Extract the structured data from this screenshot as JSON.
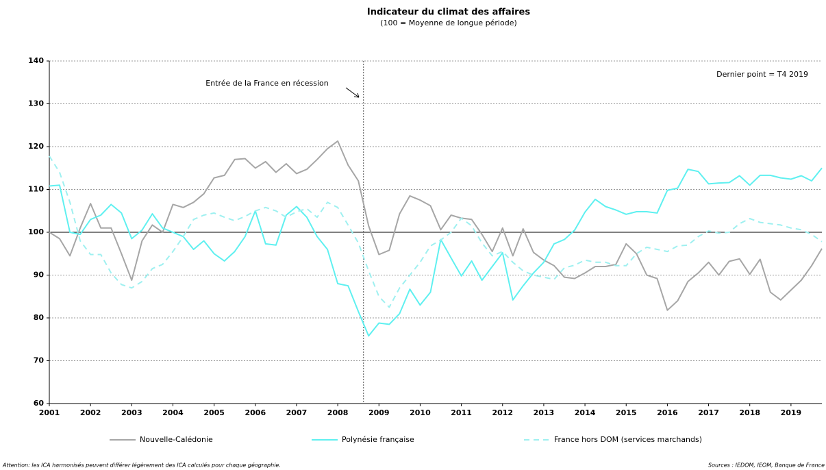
{
  "chart_data": {
    "type": "line",
    "title": "Indicateur du climat des affaires",
    "subtitle": "(100 = Moyenne de longue période)",
    "annotation": "Dernier point = T4 2019",
    "vline": {
      "x": 2008.625,
      "label": "Entrée de la France en récession"
    },
    "reference_line": 100,
    "footnote_left": "Attention: les ICA harmonisés peuvent différer légèrement des ICA calculés pour chaque géographie.",
    "footnote_right": "Sources : IEDOM, IEOM, Banque de France",
    "x": [
      2001,
      2001.25,
      2001.5,
      2001.75,
      2002,
      2002.25,
      2002.5,
      2002.75,
      2003,
      2003.25,
      2003.5,
      2003.75,
      2004,
      2004.25,
      2004.5,
      2004.75,
      2005,
      2005.25,
      2005.5,
      2005.75,
      2006,
      2006.25,
      2006.5,
      2006.75,
      2007,
      2007.25,
      2007.5,
      2007.75,
      2008,
      2008.25,
      2008.5,
      2008.75,
      2009,
      2009.25,
      2009.5,
      2009.75,
      2010,
      2010.25,
      2010.5,
      2010.75,
      2011,
      2011.25,
      2011.5,
      2011.75,
      2012,
      2012.25,
      2012.5,
      2012.75,
      2013,
      2013.25,
      2013.5,
      2013.75,
      2014,
      2014.25,
      2014.5,
      2014.75,
      2015,
      2015.25,
      2015.5,
      2015.75,
      2016,
      2016.25,
      2016.5,
      2016.75,
      2017,
      2017.25,
      2017.5,
      2017.75,
      2018,
      2018.25,
      2018.5,
      2018.75,
      2019,
      2019.25,
      2019.5,
      2019.75
    ],
    "xlim": [
      2001,
      2019.75
    ],
    "xticks": [
      2001,
      2002,
      2003,
      2004,
      2005,
      2006,
      2007,
      2008,
      2009,
      2010,
      2011,
      2012,
      2013,
      2014,
      2015,
      2016,
      2017,
      2018,
      2019
    ],
    "ylim": [
      60,
      140
    ],
    "yticks": [
      60,
      70,
      80,
      90,
      100,
      110,
      120,
      130,
      140
    ],
    "grid": true,
    "legend": "bottom",
    "series": [
      {
        "name": "Nouvelle-Calédonie",
        "color": "#a6a6a6",
        "dash": false,
        "values": [
          100,
          98.5,
          94.5,
          101,
          106.7,
          101,
          101,
          95,
          88.8,
          98,
          101.7,
          100,
          106.5,
          105.8,
          107,
          109,
          112.7,
          113.3,
          117,
          117.2,
          115,
          116.5,
          114,
          116,
          113.7,
          114.7,
          117,
          119.5,
          121.3,
          115.7,
          112,
          101.5,
          94.8,
          95.8,
          104.3,
          108.5,
          107.5,
          106.2,
          100.6,
          104,
          103.3,
          103,
          99.5,
          95.5,
          101,
          94.5,
          100.8,
          95.3,
          93.5,
          92.2,
          89.5,
          89.2,
          90.5,
          92,
          92,
          92.5,
          97.3,
          95,
          90,
          89.2,
          81.8,
          84,
          88.5,
          90.5,
          93,
          90,
          93.2,
          93.8,
          90.2,
          93.7,
          86,
          84.2,
          86.5,
          88.8,
          92.2,
          96.2
        ]
      },
      {
        "name": "Polynésie française",
        "color": "#5ff0f0",
        "dash": false,
        "values": [
          110.8,
          111,
          100,
          99.5,
          103,
          104,
          106.5,
          104.5,
          98.5,
          100.5,
          104.3,
          101,
          100,
          99,
          96,
          98,
          95,
          93.3,
          95.5,
          99,
          105,
          97.3,
          97,
          104,
          106,
          103.5,
          99,
          96,
          88,
          87.5,
          81.5,
          75.8,
          78.8,
          78.5,
          81,
          86.7,
          83,
          86,
          98.3,
          94,
          89.8,
          93.3,
          88.8,
          92,
          95.2,
          84.2,
          87.5,
          90.5,
          93,
          97.3,
          98.3,
          100.5,
          104.7,
          107.7,
          106,
          105.2,
          104.2,
          104.8,
          104.8,
          104.5,
          109.8,
          110.3,
          114.7,
          114.2,
          111.3,
          111.5,
          111.6,
          113.2,
          111,
          113.3,
          113.3,
          112.7,
          112.4,
          113.2,
          112,
          115
        ]
      },
      {
        "name": "France hors DOM (services marchands)",
        "color": "#9ef0f0",
        "dash": true,
        "values": [
          117.8,
          114,
          107,
          98,
          94.8,
          94.8,
          90.5,
          87.8,
          87,
          88.5,
          91.5,
          92.5,
          95.5,
          99,
          103,
          104,
          104.5,
          103.5,
          102.7,
          103.7,
          105,
          105.8,
          105,
          103.5,
          104.8,
          105.5,
          103.5,
          107,
          105.8,
          101.7,
          97.5,
          91,
          85,
          82.5,
          87,
          90,
          93,
          96.8,
          98.2,
          100,
          103.3,
          101.5,
          97.5,
          94.5,
          95.5,
          93,
          91,
          90,
          89.5,
          89,
          91.7,
          92.3,
          93.5,
          93,
          93,
          92.2,
          92.2,
          95,
          96.5,
          96,
          95.5,
          96.8,
          97,
          99,
          100.3,
          99.8,
          100,
          102,
          103.2,
          102.3,
          102,
          101.7,
          101,
          100.6,
          99.5,
          97.8
        ]
      }
    ]
  }
}
